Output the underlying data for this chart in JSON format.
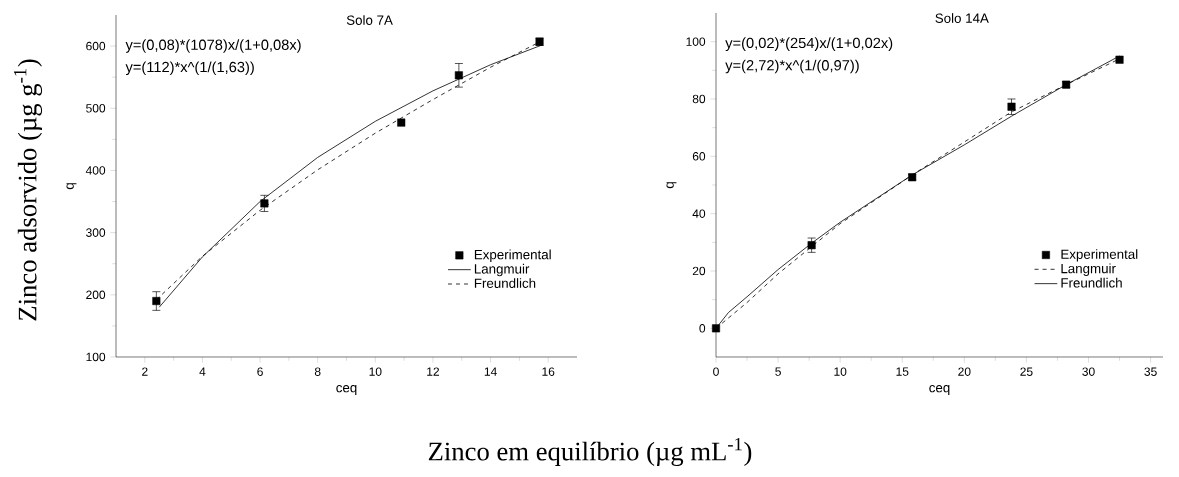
{
  "chart_data": [
    {
      "type": "scatter",
      "title": "Solo 7A",
      "xlabel": "ceq",
      "ylabel": "q",
      "annotations": [
        "y=(0,08)*(1078)x/(1+0,08x)",
        "y=(112)*x^(1/(1,63))",
        "Zinco adsorvido (µg g$^{-1}$)"
      ],
      "xlim": [
        1,
        17
      ],
      "ylim": [
        100,
        650
      ],
      "xticks": [
        2,
        4,
        6,
        8,
        10,
        12,
        14,
        16
      ],
      "yticks": [
        100,
        200,
        300,
        400,
        500,
        600
      ],
      "legend": "bottom right",
      "series": [
        {
          "name": "Experimental",
          "marker": "square",
          "color": "#000000",
          "x": [
            2.4,
            6.15,
            10.9,
            12.9,
            15.7
          ],
          "values": [
            190,
            347,
            477,
            553,
            607
          ],
          "errors": [
            15,
            13,
            null,
            19,
            6
          ]
        },
        {
          "name": "Langmuir",
          "type": "line",
          "line_style": "solid",
          "color": "#000000",
          "x": [
            2.5,
            4,
            6,
            8,
            10,
            12,
            14,
            15.8
          ],
          "values": [
            180,
            261,
            350,
            421,
            479,
            528,
            570,
            602
          ]
        },
        {
          "name": "Freundlich",
          "type": "line",
          "line_style": "dashed",
          "color": "#000000",
          "x": [
            2.4,
            4,
            6,
            8,
            10,
            12,
            14,
            15.8
          ],
          "values": [
            192,
            262,
            336,
            401,
            460,
            514,
            566,
            609
          ]
        }
      ]
    },
    {
      "type": "scatter",
      "title": "Solo 14A",
      "xlabel": "ceq",
      "ylabel": "q",
      "annotations": [
        "y=(0,02)*(254)x/(1+0,02x)",
        "y=(2,72)*x^(1/(0,97))",
        "Zinco em equilíbrio (µg mL$^{-1}$)"
      ],
      "xlim": [
        0,
        36
      ],
      "ylim": [
        -10,
        110
      ],
      "xticks": [
        0,
        5,
        10,
        15,
        20,
        25,
        30,
        35
      ],
      "yticks": [
        0,
        20,
        40,
        60,
        80,
        100
      ],
      "legend": "bottom right",
      "series": [
        {
          "name": "Experimental",
          "marker": "square",
          "color": "#000000",
          "x": [
            0,
            7.7,
            15.8,
            23.8,
            28.2,
            32.5
          ],
          "values": [
            0,
            29,
            52.7,
            77.3,
            85,
            93.7
          ],
          "errors": [
            null,
            2.5,
            1,
            2.7,
            1,
            null
          ]
        },
        {
          "name": "Langmuir",
          "type": "line",
          "line_style": "dashed",
          "color": "#000000",
          "x": [
            0,
            2.5,
            5,
            7.7,
            10,
            15.8,
            20,
            23.8,
            28.2,
            32.5
          ],
          "values": [
            0,
            9,
            19,
            28.5,
            36.5,
            53.5,
            65,
            75.5,
            85,
            94
          ]
        },
        {
          "name": "Freundlich",
          "type": "line",
          "line_style": "solid",
          "color": "#000000",
          "x": [
            0,
            1,
            2.5,
            5,
            7.7,
            10,
            15.8,
            20,
            23.8,
            28.2,
            32.5
          ],
          "values": [
            0,
            5.5,
            11,
            20.5,
            29.7,
            37,
            53.5,
            64,
            74,
            85,
            95
          ]
        }
      ]
    }
  ]
}
